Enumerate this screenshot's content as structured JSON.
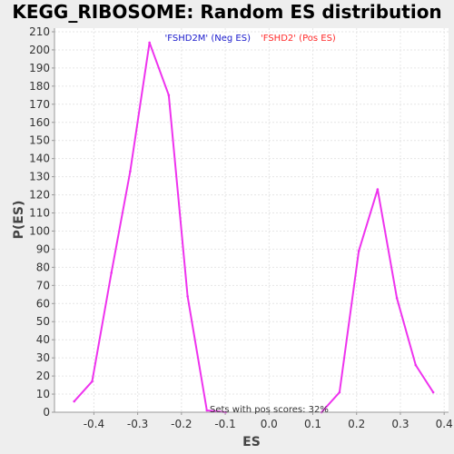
{
  "chart_data": {
    "type": "line",
    "title": "KEGG_RIBOSOME: Random ES distribution",
    "xlabel": "ES",
    "ylabel": "P(ES)",
    "xlim": [
      -0.49,
      0.41
    ],
    "ylim": [
      0,
      212
    ],
    "xticks": [
      -0.4,
      -0.3,
      -0.2,
      -0.1,
      0.0,
      0.1,
      0.2,
      0.3,
      0.4
    ],
    "xtick_labels": [
      "-0.4",
      "-0.3",
      "-0.2",
      "-0.1",
      "0.0",
      "0.1",
      "0.2",
      "0.3",
      "0.4"
    ],
    "yticks": [
      0,
      10,
      20,
      30,
      40,
      50,
      60,
      70,
      80,
      90,
      100,
      110,
      120,
      130,
      140,
      150,
      160,
      170,
      180,
      190,
      200,
      210
    ],
    "grid": true,
    "legend_position": "top",
    "series": [
      {
        "name": "'FSHD2M' (Neg ES)",
        "color": "#1a1acc",
        "x": [],
        "y": []
      },
      {
        "name": "'FSHD2' (Pos ES)",
        "color": "#ff2a2a",
        "x": [],
        "y": []
      }
    ],
    "curve": {
      "color": "#ee33ee",
      "x": [
        -0.445,
        -0.404,
        -0.36,
        -0.317,
        -0.273,
        -0.229,
        -0.186,
        -0.142,
        -0.099,
        0.12,
        0.161,
        0.205,
        0.248,
        0.292,
        0.335,
        0.375
      ],
      "y": [
        6,
        17,
        77,
        133,
        204,
        175,
        64,
        1,
        0,
        0,
        11,
        89,
        123,
        63,
        26,
        11
      ]
    },
    "annotation": "Sets with pos scores: 32%"
  }
}
